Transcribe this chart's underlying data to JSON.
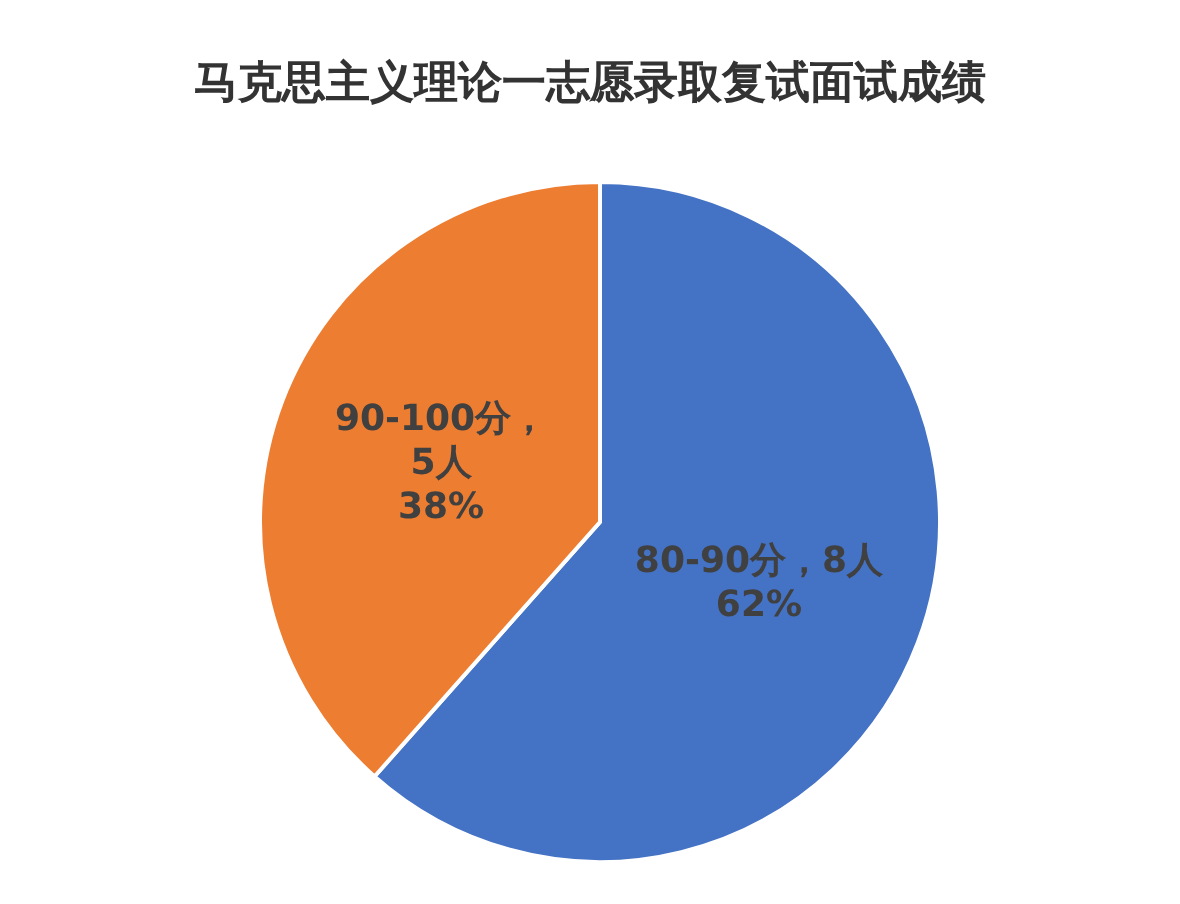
{
  "chart_data": {
    "type": "pie",
    "title": "马克思主义理论一志愿录取复试面试成绩",
    "categories": [
      "80-90分",
      "90-100分"
    ],
    "values": [
      8,
      5
    ],
    "colors": [
      "#4472c4",
      "#ed7d31"
    ],
    "value_labels": [
      "，8人\n62%",
      "，\n5人\n38%"
    ],
    "legend": false
  }
}
